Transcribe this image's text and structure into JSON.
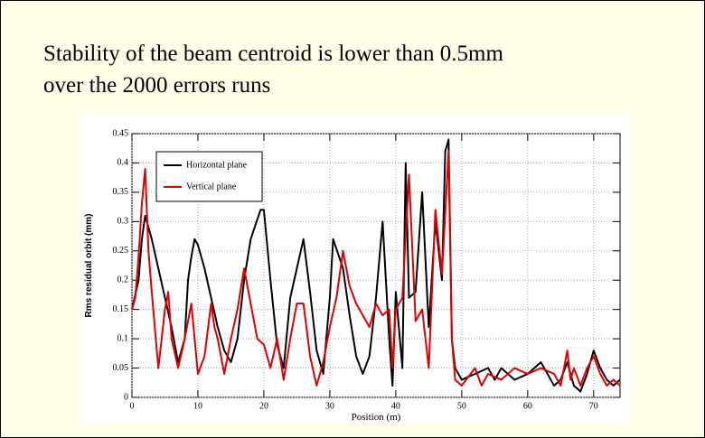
{
  "chart_data": {
    "type": "line",
    "title": [
      "Stability of the beam centroid is lower than 0.5mm",
      "over the 2000 errors runs"
    ],
    "xlabel": "Position (m)",
    "ylabel": "Rms residual orbit (mm)",
    "xlim": [
      0,
      74
    ],
    "ylim": [
      0,
      0.45
    ],
    "xticks": [
      0,
      10,
      20,
      30,
      40,
      50,
      60,
      70
    ],
    "yticks": [
      0,
      0.05,
      0.1,
      0.15,
      0.2,
      0.25,
      0.3,
      0.35,
      0.4,
      0.45
    ],
    "grid": true,
    "legend": "upper left",
    "series": [
      {
        "name": "Horizontal plane",
        "color": "#000000",
        "x": [
          0,
          1,
          1.5,
          2,
          3,
          4,
          5,
          6,
          7,
          8,
          8.5,
          9,
          9.5,
          10,
          11,
          12,
          13,
          14,
          15,
          16,
          17,
          18,
          19.5,
          20,
          21,
          22,
          23,
          24,
          25,
          26,
          27,
          28,
          29,
          30,
          30.5,
          32,
          33,
          34,
          35,
          36,
          37,
          38,
          39,
          39.5,
          40,
          41,
          41.5,
          42,
          43,
          44,
          45,
          46,
          47,
          47.5,
          48,
          48.5,
          49,
          50,
          52,
          54,
          55,
          56,
          58,
          60,
          62,
          63,
          64,
          65,
          66,
          67,
          68,
          69,
          70,
          71,
          72,
          73,
          74
        ],
        "values": [
          0.15,
          0.2,
          0.27,
          0.31,
          0.27,
          0.22,
          0.17,
          0.12,
          0.06,
          0.1,
          0.2,
          0.24,
          0.27,
          0.26,
          0.22,
          0.17,
          0.12,
          0.08,
          0.06,
          0.1,
          0.2,
          0.27,
          0.32,
          0.32,
          0.2,
          0.09,
          0.05,
          0.17,
          0.22,
          0.27,
          0.18,
          0.08,
          0.04,
          0.17,
          0.27,
          0.22,
          0.14,
          0.07,
          0.04,
          0.07,
          0.17,
          0.3,
          0.1,
          0.02,
          0.18,
          0.05,
          0.4,
          0.17,
          0.18,
          0.35,
          0.12,
          0.3,
          0.2,
          0.42,
          0.44,
          0.1,
          0.05,
          0.03,
          0.04,
          0.05,
          0.03,
          0.05,
          0.03,
          0.04,
          0.06,
          0.04,
          0.02,
          0.03,
          0.06,
          0.02,
          0.01,
          0.04,
          0.08,
          0.05,
          0.03,
          0.02,
          0.03
        ]
      },
      {
        "name": "Vertical plane",
        "color": "#e00000",
        "x": [
          0,
          0.5,
          1,
          1.5,
          2,
          2.5,
          3,
          4,
          5,
          5.5,
          6,
          7,
          8,
          9,
          10,
          11,
          12,
          12.5,
          13,
          14,
          15,
          16,
          17,
          18,
          19,
          20,
          21,
          22,
          23,
          24,
          25,
          26,
          27,
          28,
          29,
          30,
          31,
          32,
          33,
          34,
          35,
          36,
          37,
          38,
          39,
          39.5,
          40,
          41,
          42,
          43,
          44,
          45,
          46,
          47,
          48,
          48.5,
          49,
          50,
          52,
          53,
          54,
          56,
          58,
          60,
          62,
          64,
          65,
          66,
          66.5,
          67,
          68,
          69,
          70,
          71,
          72,
          73,
          74
        ],
        "values": [
          0.15,
          0.17,
          0.24,
          0.33,
          0.39,
          0.25,
          0.18,
          0.05,
          0.15,
          0.18,
          0.1,
          0.05,
          0.1,
          0.16,
          0.04,
          0.07,
          0.16,
          0.12,
          0.1,
          0.04,
          0.1,
          0.15,
          0.22,
          0.16,
          0.1,
          0.09,
          0.05,
          0.1,
          0.03,
          0.1,
          0.16,
          0.16,
          0.07,
          0.02,
          0.06,
          0.12,
          0.17,
          0.25,
          0.19,
          0.16,
          0.14,
          0.12,
          0.16,
          0.14,
          0.15,
          0.05,
          0.15,
          0.17,
          0.38,
          0.13,
          0.15,
          0.05,
          0.32,
          0.21,
          0.42,
          0.1,
          0.03,
          0.02,
          0.05,
          0.02,
          0.04,
          0.03,
          0.05,
          0.04,
          0.05,
          0.04,
          0.02,
          0.08,
          0.03,
          0.05,
          0.02,
          0.05,
          0.07,
          0.04,
          0.02,
          0.03,
          0.02
        ]
      }
    ]
  }
}
